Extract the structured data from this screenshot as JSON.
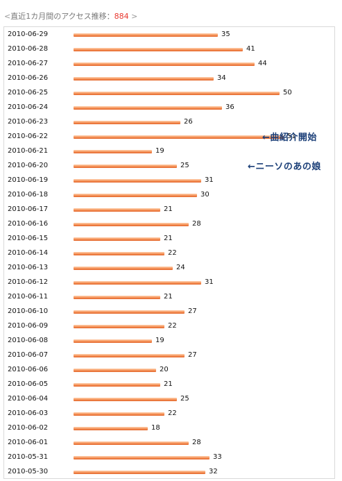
{
  "header": {
    "open": "<",
    "title": "直近1カ月間のアクセス推移：",
    "total": "884",
    "close": ">"
  },
  "annotations": [
    {
      "text": "←曲紹介開始",
      "row": 8
    },
    {
      "text": "←ニーソのあの娘",
      "row": 10
    }
  ],
  "colors": {
    "bar": "#f0884a",
    "total": "#e8382f",
    "annotation": "#1b3f78"
  },
  "chart_data": {
    "type": "bar",
    "orientation": "horizontal",
    "categories": [
      "2010-06-29",
      "2010-06-28",
      "2010-06-27",
      "2010-06-26",
      "2010-06-25",
      "2010-06-24",
      "2010-06-23",
      "2010-06-22",
      "2010-06-21",
      "2010-06-20",
      "2010-06-19",
      "2010-06-18",
      "2010-06-17",
      "2010-06-16",
      "2010-06-15",
      "2010-06-14",
      "2010-06-13",
      "2010-06-12",
      "2010-06-11",
      "2010-06-10",
      "2010-06-09",
      "2010-06-08",
      "2010-06-07",
      "2010-06-06",
      "2010-06-05",
      "2010-06-04",
      "2010-06-03",
      "2010-06-02",
      "2010-06-01",
      "2010-05-31",
      "2010-05-30"
    ],
    "values": [
      35,
      41,
      44,
      34,
      50,
      36,
      26,
      51,
      19,
      25,
      31,
      30,
      21,
      28,
      21,
      22,
      24,
      31,
      21,
      27,
      22,
      19,
      27,
      20,
      21,
      25,
      22,
      18,
      28,
      33,
      32
    ],
    "xlim": [
      0,
      51
    ],
    "grid": false
  }
}
